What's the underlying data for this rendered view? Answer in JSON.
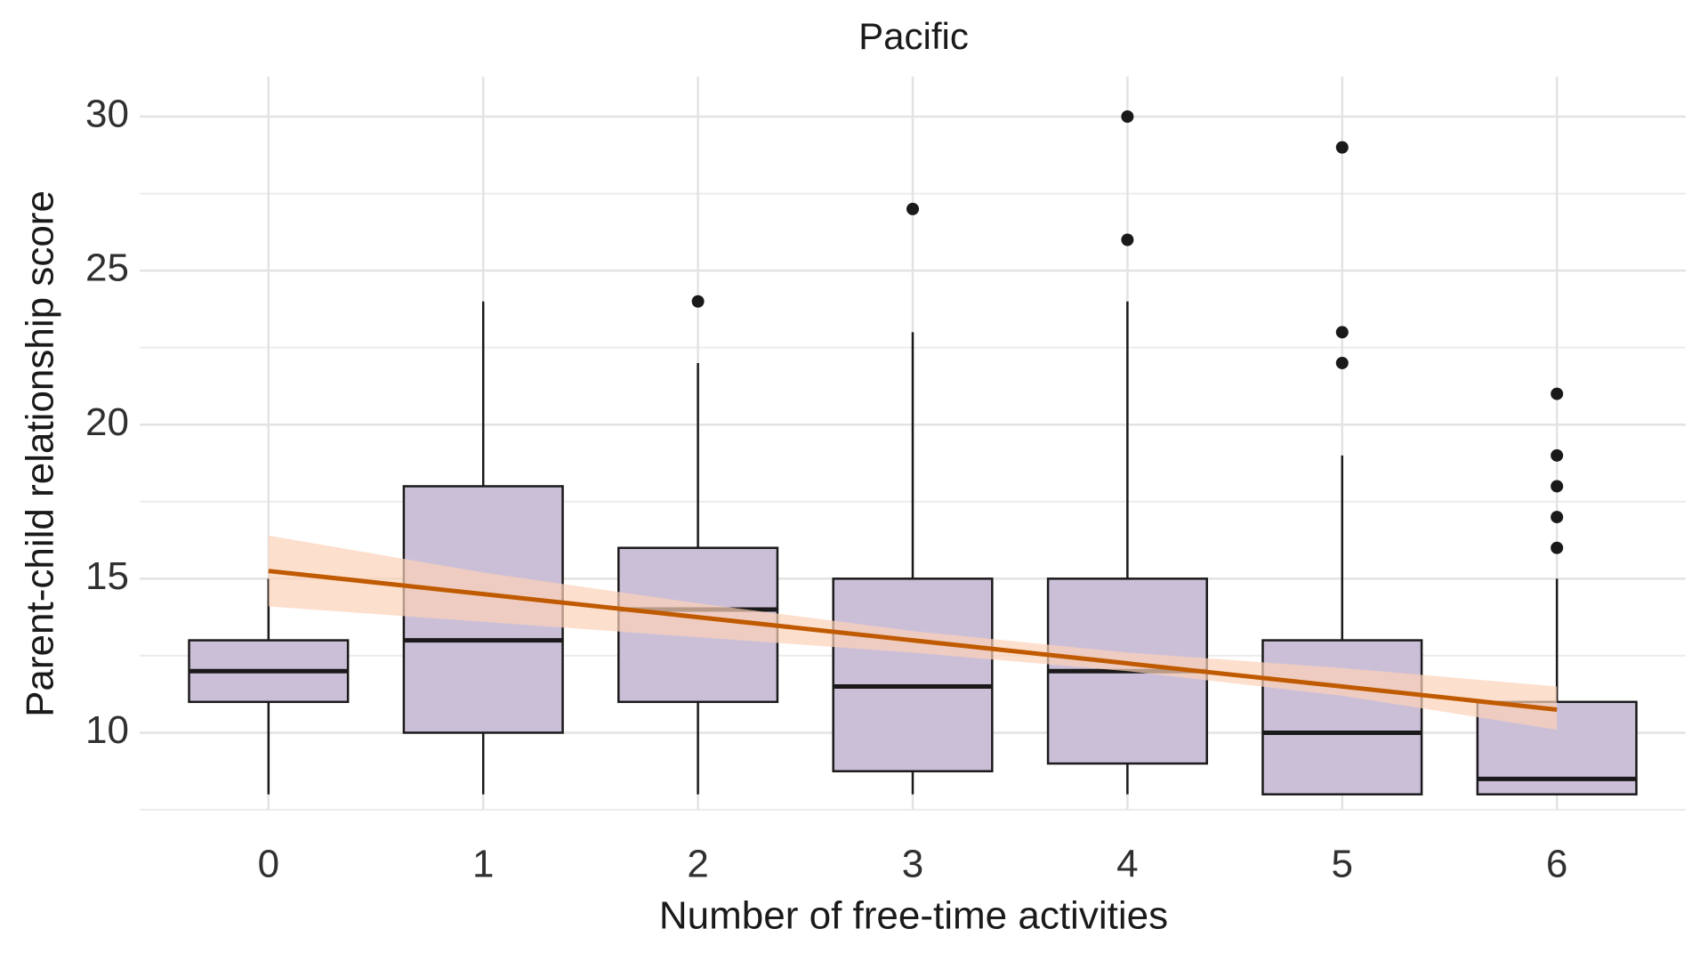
{
  "chart_data": {
    "type": "box",
    "title": "Pacific",
    "x_label": "Number of free-time activities",
    "y_label": "Parent-child relationship score",
    "x": [
      0,
      1,
      2,
      3,
      4,
      5,
      6
    ],
    "whisker_low": [
      8,
      8,
      8,
      8,
      8,
      8,
      8
    ],
    "q1": [
      11,
      10,
      11,
      8.75,
      9,
      8,
      8
    ],
    "median": [
      12,
      13,
      14,
      11.5,
      12,
      10,
      8.5
    ],
    "q3": [
      13,
      18,
      16,
      15,
      15,
      13,
      11
    ],
    "whisker_high": [
      15,
      24,
      22,
      23,
      24,
      19,
      15
    ],
    "outliers": [
      [],
      [],
      [
        24
      ],
      [
        27
      ],
      [
        26,
        30
      ],
      [
        22,
        23,
        29
      ],
      [
        16,
        17,
        18,
        19,
        21
      ]
    ],
    "box_color": "#cbbfd8",
    "trend": {
      "x": [
        0,
        1,
        2,
        3,
        4,
        5,
        6
      ],
      "values": [
        15.25,
        14.5,
        13.75,
        13.0,
        12.25,
        11.5,
        10.75
      ],
      "lower": [
        14.1,
        13.6,
        13.1,
        12.6,
        12.0,
        11.2,
        10.1
      ],
      "upper": [
        16.4,
        15.2,
        14.2,
        13.3,
        12.6,
        12.1,
        11.5
      ],
      "color": "#c05a00",
      "band_color": "#fcd2b8"
    },
    "xlim": [
      -0.6,
      6.6
    ],
    "xticks": [
      0,
      1,
      2,
      3,
      4,
      5,
      6
    ],
    "ylim": [
      7.5,
      31.3
    ],
    "yticks": [
      10,
      15,
      20,
      25,
      30
    ],
    "y_minor_ticks": [
      7.5,
      12.5,
      17.5,
      22.5,
      27.5
    ],
    "grid": true
  }
}
